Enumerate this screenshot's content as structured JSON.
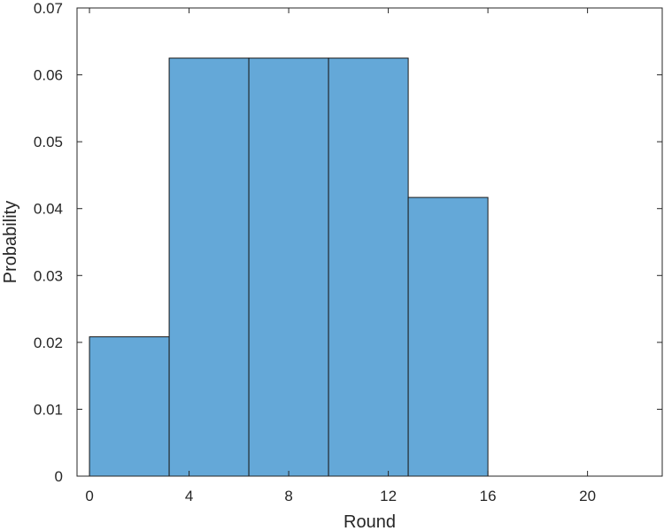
{
  "chart_data": {
    "type": "bar",
    "subtype": "histogram",
    "title": "",
    "xlabel": "Round",
    "ylabel": "Probability",
    "bin_edges": [
      0,
      3.2,
      6.4,
      9.6,
      12.8,
      16
    ],
    "values": [
      0.02083,
      0.0625,
      0.0625,
      0.0625,
      0.04167
    ],
    "xlim": [
      -0.5,
      23
    ],
    "ylim": [
      0,
      0.07
    ],
    "xticks": [
      0,
      4,
      8,
      12,
      16,
      20
    ],
    "xtick_labels": [
      "0",
      "4",
      "8",
      "12",
      "16",
      "20"
    ],
    "yticks": [
      0,
      0.01,
      0.02,
      0.03,
      0.04,
      0.05,
      0.06,
      0.07
    ],
    "ytick_labels": [
      "0",
      "0.01",
      "0.02",
      "0.03",
      "0.04",
      "0.05",
      "0.06",
      "0.07"
    ],
    "bar_color": "#64a8d8",
    "edge_color": "#1a1a1a",
    "grid": false,
    "legend": false
  }
}
